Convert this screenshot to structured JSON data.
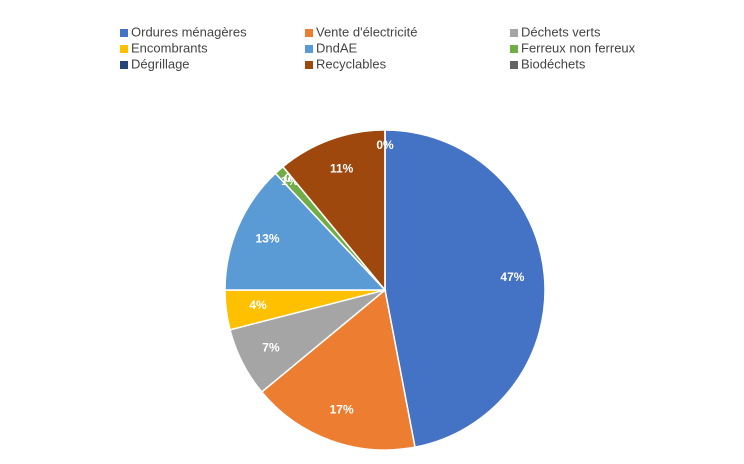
{
  "chart_data": {
    "type": "pie",
    "categories": [
      "Ordures ménagères",
      "Vente d'électricité",
      "Déchets verts",
      "Encombrants",
      "DndAE",
      "Ferreux non ferreux",
      "Dégrillage",
      "Recyclables",
      "Biodéchets"
    ],
    "values": [
      47,
      17,
      7,
      4,
      13,
      1,
      0,
      11,
      0
    ],
    "value_labels": [
      "47%",
      "17%",
      "7%",
      "4%",
      "13%",
      "1%",
      "0%",
      "11%",
      "0%"
    ],
    "colors": [
      "#4472c4",
      "#ed7d31",
      "#a5a5a5",
      "#ffc000",
      "#5b9bd5",
      "#70ad47",
      "#264478",
      "#9e480e",
      "#636363"
    ]
  }
}
